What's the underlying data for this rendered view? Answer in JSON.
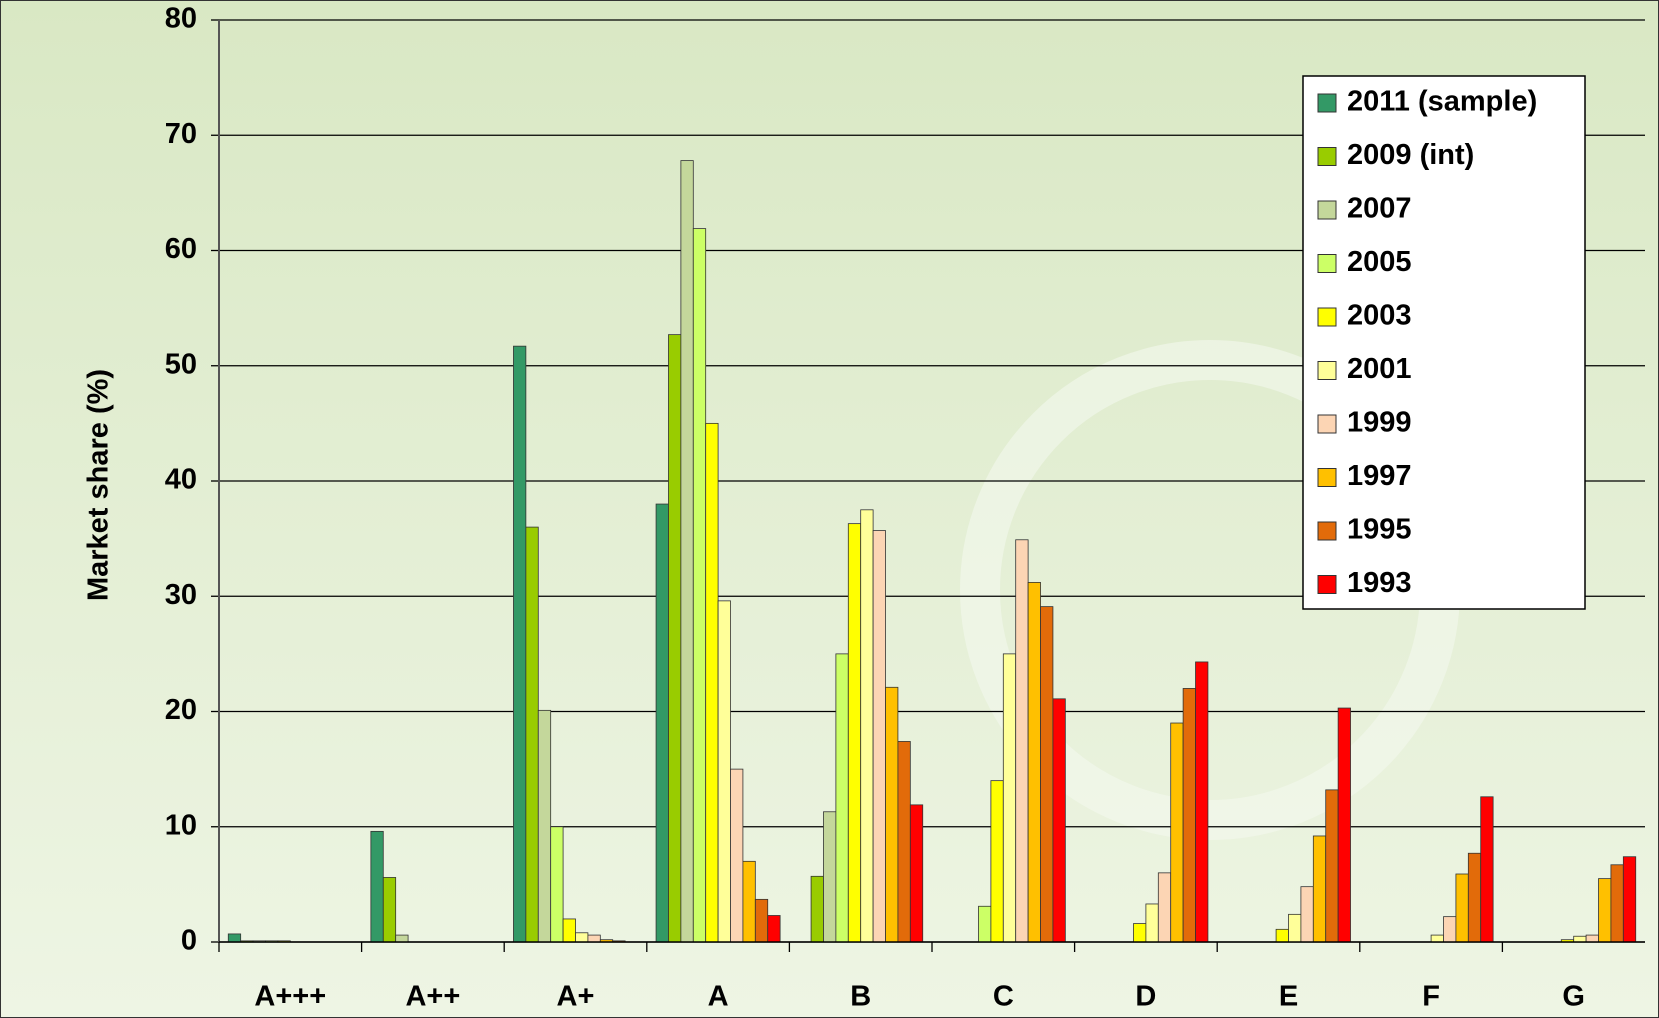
{
  "chart_data": {
    "type": "bar",
    "y_label": "Market share (%)",
    "categories": [
      "A+++",
      "A++",
      "A+",
      "A",
      "B",
      "C",
      "D",
      "E",
      "F",
      "G"
    ],
    "series": [
      {
        "name": "2011 (sample)",
        "color": "#339966",
        "values": [
          0.7,
          9.6,
          51.7,
          38,
          0,
          0,
          0,
          0,
          0,
          0
        ]
      },
      {
        "name": "2009 (int)",
        "color": "#99cc00",
        "values": [
          0.1,
          5.6,
          36,
          52.7,
          5.7,
          0,
          0,
          0,
          0,
          0
        ]
      },
      {
        "name": "2007",
        "color": "#c4d79b",
        "values": [
          0.1,
          0.6,
          20.1,
          67.8,
          11.3,
          0,
          0,
          0,
          0,
          0
        ]
      },
      {
        "name": "2005",
        "color": "#ccff66",
        "values": [
          0.1,
          0,
          10,
          61.9,
          25,
          3.1,
          0,
          0,
          0,
          0
        ]
      },
      {
        "name": "2003",
        "color": "#ffff00",
        "values": [
          0.1,
          0,
          2,
          45,
          36.3,
          14,
          1.6,
          1.1,
          0,
          0.2
        ]
      },
      {
        "name": "2001",
        "color": "#ffff99",
        "values": [
          0,
          0,
          0.8,
          29.6,
          37.5,
          25,
          3.3,
          2.4,
          0.6,
          0.5
        ]
      },
      {
        "name": "1999",
        "color": "#fcd5b4",
        "values": [
          0,
          0,
          0.6,
          15,
          35.7,
          34.9,
          6,
          4.8,
          2.2,
          0.6
        ]
      },
      {
        "name": "1997",
        "color": "#ffc000",
        "values": [
          0,
          0,
          0.2,
          7,
          22.1,
          31.2,
          19,
          9.2,
          5.9,
          5.5
        ]
      },
      {
        "name": "1995",
        "color": "#e26b0a",
        "values": [
          0,
          0,
          0.1,
          3.7,
          17.4,
          29.1,
          22,
          13.2,
          7.7,
          6.7
        ]
      },
      {
        "name": "1993",
        "color": "#ff0000",
        "values": [
          0,
          0,
          0,
          2.3,
          11.9,
          21.1,
          24.3,
          20.3,
          12.6,
          7.4
        ]
      }
    ],
    "ylim": [
      0,
      80
    ],
    "yticks": [
      0,
      10,
      20,
      30,
      40,
      50,
      60,
      70,
      80
    ],
    "grid": true,
    "legend": "upper right"
  }
}
